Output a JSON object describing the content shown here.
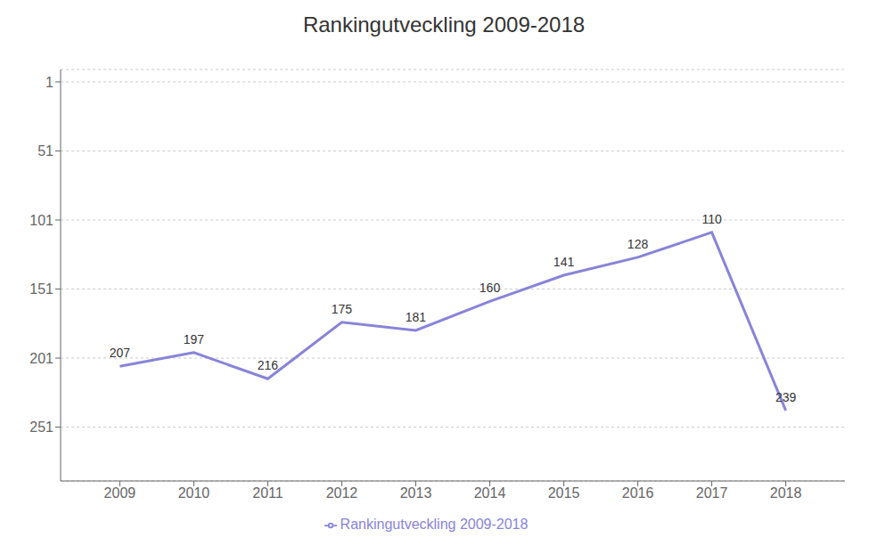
{
  "chart_data": {
    "type": "line",
    "title": "Rankingutveckling 2009-2018",
    "x": [
      2009,
      2010,
      2011,
      2012,
      2013,
      2014,
      2015,
      2016,
      2017,
      2018
    ],
    "series": [
      {
        "name": "Rankingutveckling 2009-2018",
        "color": "#8884d8",
        "values": [
          207,
          197,
          216,
          175,
          181,
          160,
          141,
          128,
          110,
          239
        ]
      }
    ],
    "xlim": [
      2008.2,
      2018.8
    ],
    "xticks": [
      2009,
      2010,
      2011,
      2012,
      2013,
      2014,
      2015,
      2016,
      2017,
      2018
    ],
    "ylim": [
      290,
      -8
    ],
    "yticks": [
      1,
      51,
      101,
      151,
      201,
      251
    ],
    "grid": true,
    "legend": "bottom",
    "data_labels": true
  }
}
